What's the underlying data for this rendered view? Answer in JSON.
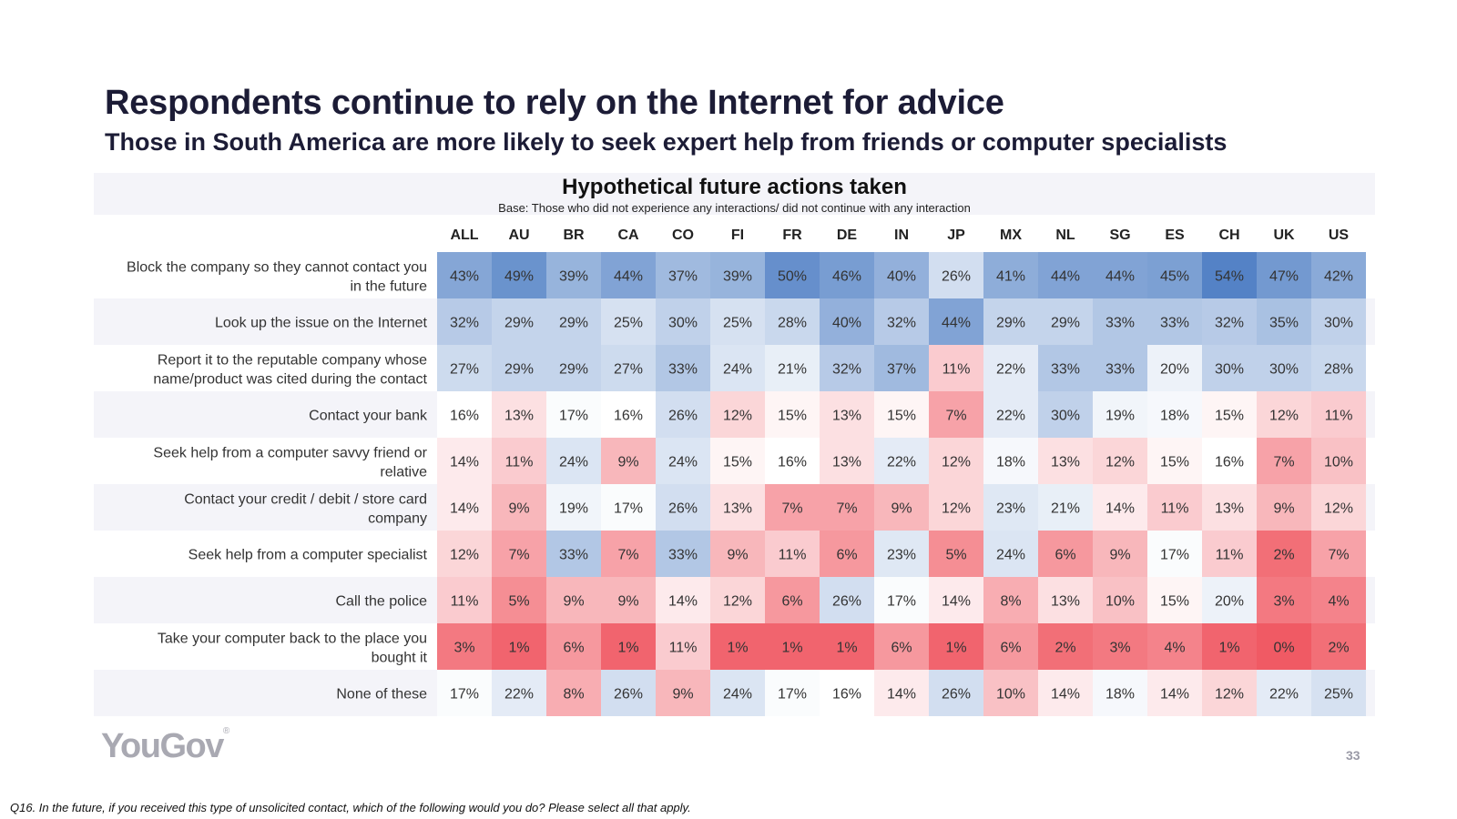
{
  "title": "Respondents continue to rely on the Internet for advice",
  "subtitle": "Those in South America are more likely to seek expert help from friends or computer specialists",
  "chart_data": {
    "type": "heatmap",
    "title": "Hypothetical future actions taken",
    "subtitle": "Base: Those who did not experience any interactions/ did not continue with any interaction",
    "value_suffix": "%",
    "columns": [
      "ALL",
      "AU",
      "BR",
      "CA",
      "CO",
      "FI",
      "FR",
      "DE",
      "IN",
      "JP",
      "MX",
      "NL",
      "SG",
      "ES",
      "CH",
      "UK",
      "US"
    ],
    "rows": [
      {
        "label": [
          "Block the company so they cannot contact you",
          "in the future"
        ],
        "values": [
          43,
          49,
          39,
          44,
          37,
          39,
          50,
          46,
          40,
          26,
          41,
          44,
          44,
          45,
          54,
          47,
          42
        ]
      },
      {
        "label": [
          "Look up the issue on the Internet"
        ],
        "values": [
          32,
          29,
          29,
          25,
          30,
          25,
          28,
          40,
          32,
          44,
          29,
          29,
          33,
          33,
          32,
          35,
          30
        ]
      },
      {
        "label": [
          "Report it to the reputable company whose",
          "name/product was cited during the contact"
        ],
        "values": [
          27,
          29,
          29,
          27,
          33,
          24,
          21,
          32,
          37,
          11,
          22,
          33,
          33,
          20,
          30,
          30,
          28
        ]
      },
      {
        "label": [
          "Contact your bank"
        ],
        "values": [
          16,
          13,
          17,
          16,
          26,
          12,
          15,
          13,
          15,
          7,
          22,
          30,
          19,
          18,
          15,
          12,
          11
        ]
      },
      {
        "label": [
          "Seek help from a computer savvy friend or",
          "relative"
        ],
        "values": [
          14,
          11,
          24,
          9,
          24,
          15,
          16,
          13,
          22,
          12,
          18,
          13,
          12,
          15,
          16,
          7,
          10
        ]
      },
      {
        "label": [
          "Contact your credit / debit / store card",
          "company"
        ],
        "values": [
          14,
          9,
          19,
          17,
          26,
          13,
          7,
          7,
          9,
          12,
          23,
          21,
          14,
          11,
          13,
          9,
          12
        ]
      },
      {
        "label": [
          "Seek help from a computer specialist"
        ],
        "values": [
          12,
          7,
          33,
          7,
          33,
          9,
          11,
          6,
          23,
          5,
          24,
          6,
          9,
          17,
          11,
          2,
          7
        ]
      },
      {
        "label": [
          "Call the police"
        ],
        "values": [
          11,
          5,
          9,
          9,
          14,
          12,
          6,
          26,
          17,
          14,
          8,
          13,
          10,
          15,
          20,
          3,
          4
        ]
      },
      {
        "label": [
          "Take your computer back to the place you",
          "bought it"
        ],
        "values": [
          3,
          1,
          6,
          1,
          11,
          1,
          1,
          1,
          6,
          1,
          6,
          2,
          3,
          4,
          1,
          0,
          2
        ]
      },
      {
        "label": [
          "None of these"
        ],
        "values": [
          17,
          22,
          8,
          26,
          9,
          24,
          17,
          16,
          14,
          26,
          10,
          14,
          18,
          14,
          12,
          22,
          25
        ]
      }
    ],
    "color_scale": {
      "low": "#f05a64",
      "mid": "#ffffff",
      "high": "#4f7fc4",
      "low_value": 0,
      "mid_value": 16,
      "high_value": 55
    }
  },
  "logo": {
    "text": "YouGov",
    "mark": "®"
  },
  "page_number": "33",
  "footnote": "Q16. In the future, if you received this type of unsolicited contact, which of the following would you do? Please select all that apply."
}
